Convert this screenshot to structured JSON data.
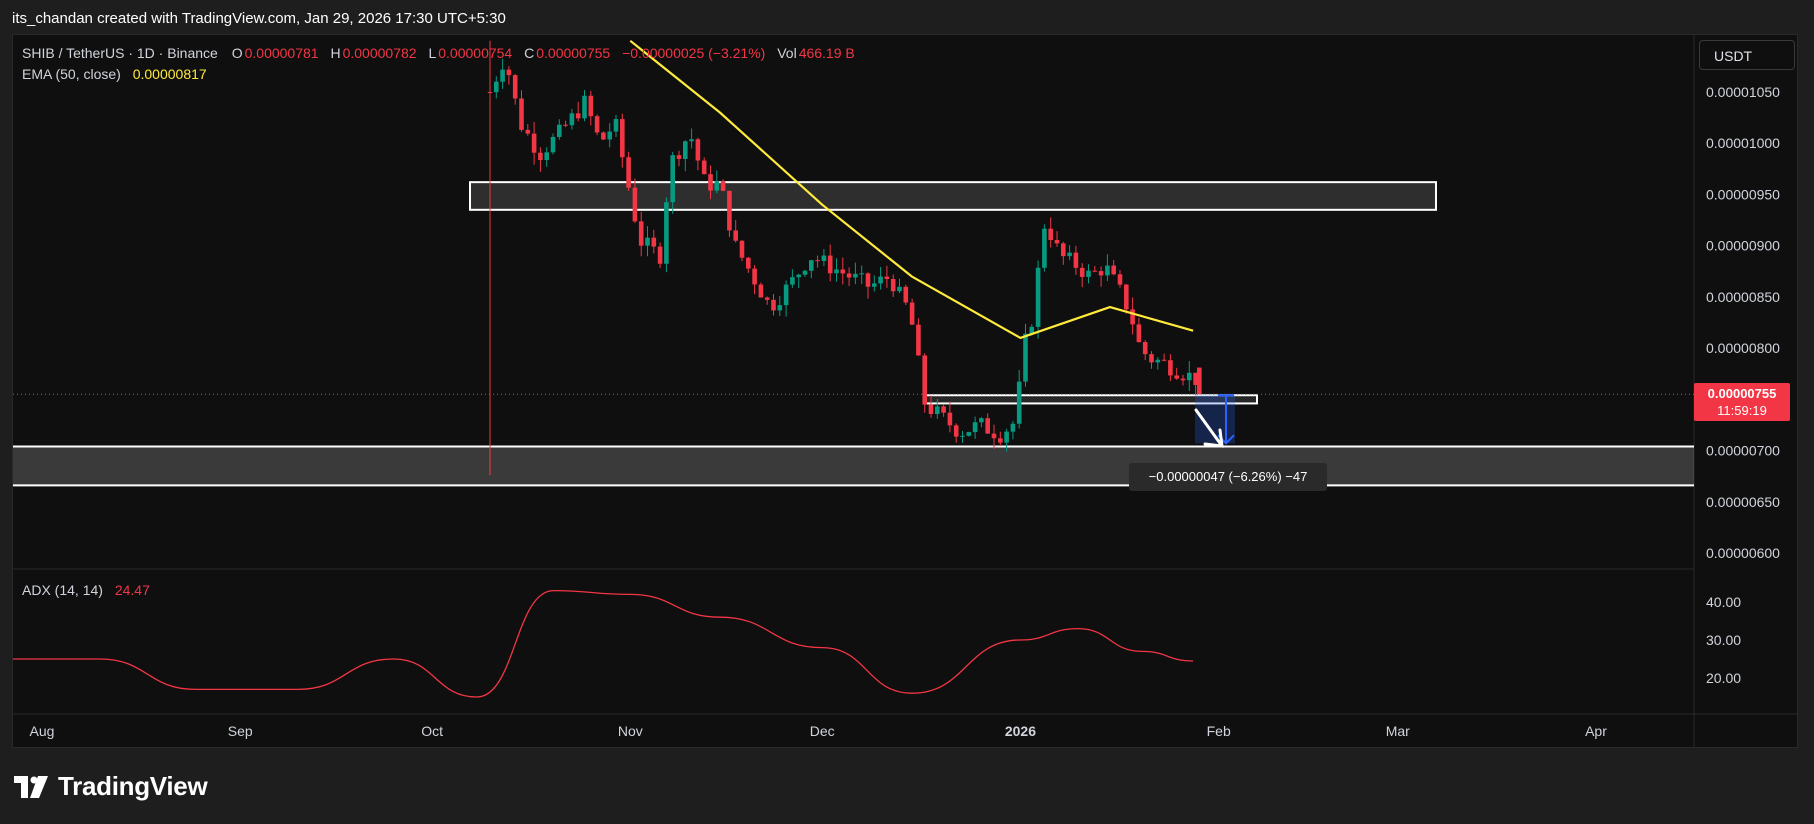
{
  "attribution": "its_chandan created with TradingView.com, Jan 29, 2026 17:30 UTC+5:30",
  "brand": {
    "name": "TradingView",
    "logo_icon": "tradingview-logo-icon"
  },
  "currency_button": "USDT",
  "legend": {
    "symbol": "SHIB / TetherUS · 1D · Binance",
    "open_label": "O",
    "open": "0.00000781",
    "high_label": "H",
    "high": "0.00000782",
    "low_label": "L",
    "low": "0.00000754",
    "close_label": "C",
    "close": "0.00000755",
    "change": "−0.00000025 (−3.21%)",
    "vol_label": "Vol",
    "vol": "466.19 B",
    "ema_label": "EMA (50, close)",
    "ema_value": "0.00000817",
    "adx_label": "ADX (14, 14)",
    "adx_value": "24.47"
  },
  "price_tag": {
    "price": "0.00000755",
    "countdown": "11:59:19"
  },
  "measure_label": "−0.00000047 (−6.26%) −47",
  "colors": {
    "up": "#089981",
    "down": "#f23645",
    "ema": "#ffeb3b",
    "adx": "#f23645",
    "background": "#0f0f0f"
  },
  "chart_data": [
    {
      "type": "candlestick",
      "title": "SHIB / TetherUS · 1D · Binance",
      "y_axis_ticks": [
        "0.00001050",
        "0.00001000",
        "0.00000950",
        "0.00000900",
        "0.00000850",
        "0.00000800",
        "0.00000700",
        "0.00000650",
        "0.00000600"
      ],
      "ylim": [
        5.85e-06,
        1.105e-05
      ],
      "x_axis_ticks": [
        "Aug",
        "Sep",
        "Oct",
        "Nov",
        "Dec",
        "2026",
        "Feb",
        "Mar",
        "Apr"
      ],
      "series": [
        {
          "name": "EMA (50, close)",
          "x": [
            "2025-11-01",
            "2025-11-15",
            "2025-12-01",
            "2025-12-15",
            "2026-01-01",
            "2026-01-15",
            "2026-01-28"
          ],
          "values": [
            1.1e-05,
            1.03e-05,
            9.4e-06,
            8.7e-06,
            8.1e-06,
            8.4e-06,
            8.17e-06
          ]
        }
      ],
      "zones": [
        {
          "kind": "resistance",
          "from": 9.35e-06,
          "to": 9.62e-06
        },
        {
          "kind": "support",
          "from": 7.46e-06,
          "to": 7.54e-06
        },
        {
          "kind": "support",
          "from": 6.66e-06,
          "to": 7.04e-06
        }
      ],
      "last_price": 7.55e-06
    },
    {
      "type": "line",
      "title": "ADX (14, 14)",
      "y_axis_ticks": [
        "40.00",
        "30.00",
        "20.00"
      ],
      "series": [
        {
          "name": "ADX (14, 14)",
          "x": [
            "2025-07-25",
            "2025-08-10",
            "2025-08-25",
            "2025-09-10",
            "2025-09-25",
            "2025-10-08",
            "2025-10-20",
            "2025-11-01",
            "2025-11-15",
            "2025-12-01",
            "2025-12-15",
            "2026-01-01",
            "2026-01-10",
            "2026-01-20",
            "2026-01-28"
          ],
          "values": [
            25,
            25,
            17,
            17,
            25,
            15,
            43,
            42,
            36,
            28,
            16,
            30,
            33,
            27,
            24.47
          ]
        }
      ]
    }
  ]
}
